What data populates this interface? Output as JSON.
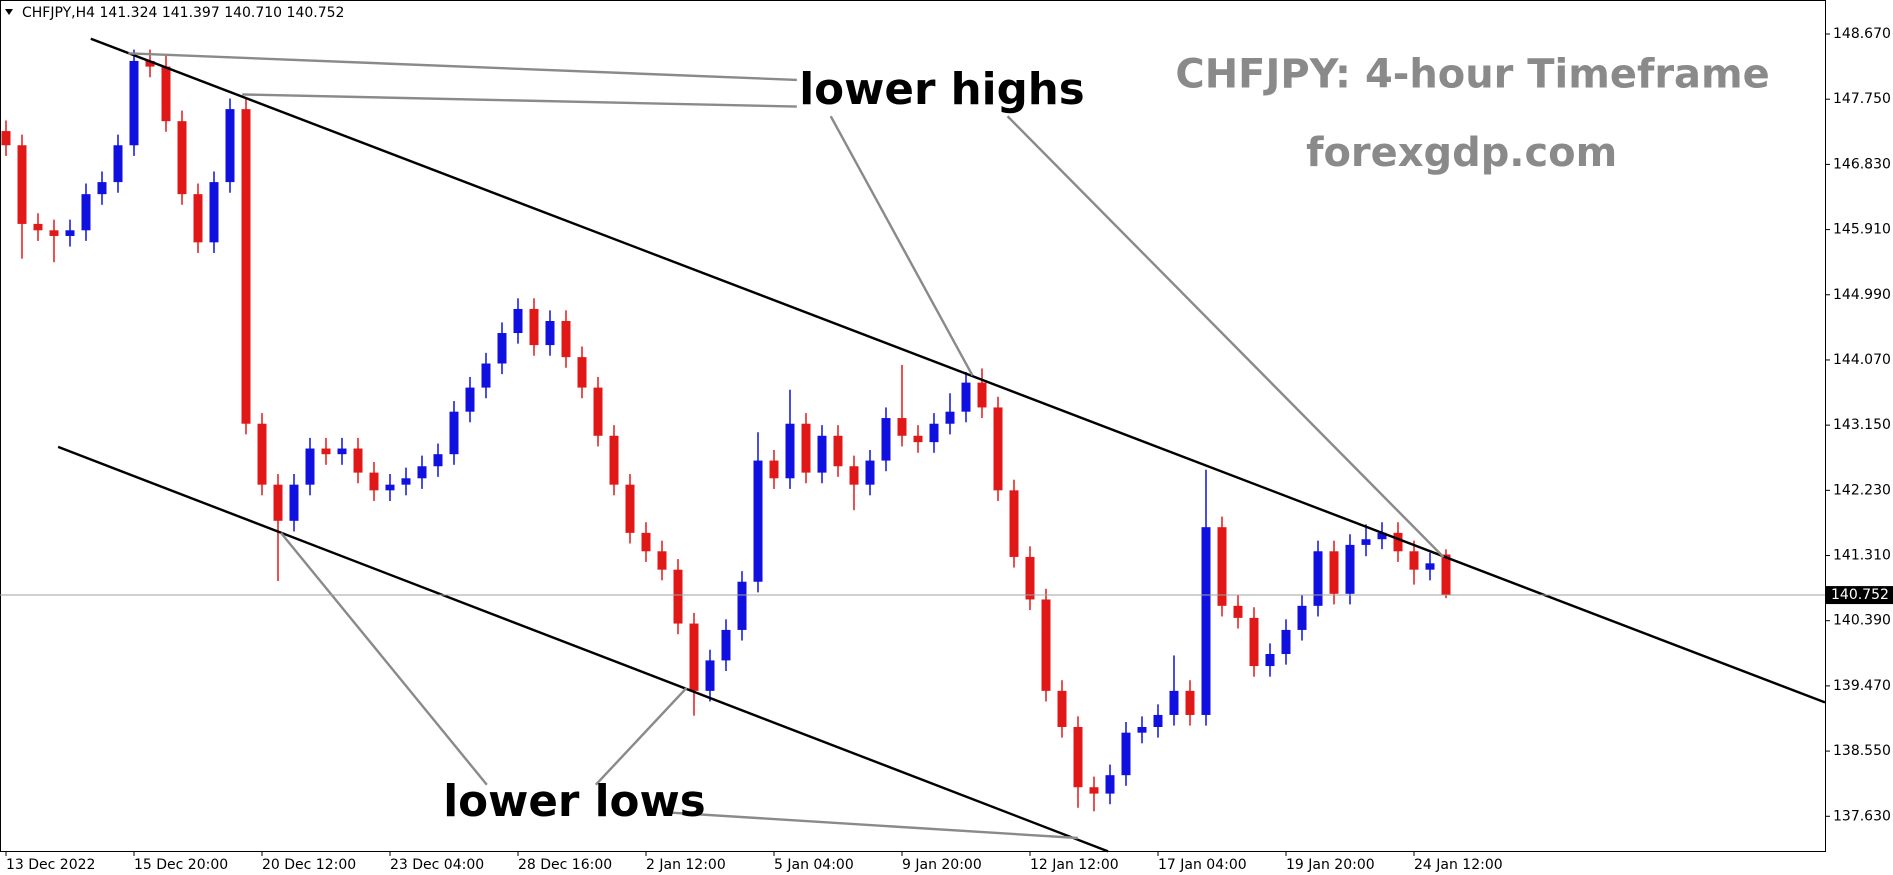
{
  "chart_data": {
    "type": "candlestick",
    "header": "CHFJPY,H4  141.324 141.397 140.710 140.752",
    "title": "CHFJPY: 4-hour Timeframe",
    "subtitle": "forexgdp.com",
    "annotations": [
      "lower highs",
      "lower lows"
    ],
    "up_color": "#1010e0",
    "down_color": "#e01818",
    "categories": [
      "13 Dec 2022",
      null,
      null,
      null,
      null,
      null,
      null,
      null,
      "15 Dec 20:00",
      null,
      null,
      null,
      null,
      null,
      null,
      null,
      "20 Dec 12:00",
      null,
      null,
      null,
      null,
      null,
      null,
      null,
      "23 Dec 04:00",
      null,
      null,
      null,
      null,
      null,
      null,
      null,
      "28 Dec 16:00",
      null,
      null,
      null,
      null,
      null,
      null,
      null,
      "2 Jan 12:00",
      null,
      null,
      null,
      null,
      null,
      null,
      null,
      "5 Jan 04:00",
      null,
      null,
      null,
      null,
      null,
      null,
      null,
      "9 Jan 20:00",
      null,
      null,
      null,
      null,
      null,
      null,
      null,
      "12 Jan 12:00",
      null,
      null,
      null,
      null,
      null,
      null,
      null,
      "17 Jan 04:00",
      null,
      null,
      null,
      null,
      null,
      null,
      null,
      "19 Jan 20:00",
      null,
      null,
      null,
      null,
      null,
      null,
      null,
      "24 Jan 12:00",
      null,
      null
    ],
    "open": [
      147.3,
      147.1,
      145.99,
      145.9,
      145.82,
      145.9,
      146.41,
      146.58,
      147.1,
      148.29,
      148.21,
      147.44,
      146.41,
      145.73,
      146.58,
      147.61,
      143.17,
      142.31,
      141.8,
      142.31,
      142.82,
      142.74,
      142.82,
      142.48,
      142.23,
      142.31,
      142.4,
      142.57,
      142.74,
      143.34,
      143.68,
      144.02,
      144.45,
      144.79,
      144.28,
      144.62,
      144.11,
      143.68,
      143.0,
      142.31,
      141.63,
      141.37,
      141.11,
      140.35,
      139.4,
      139.83,
      140.26,
      140.94,
      142.65,
      142.4,
      143.17,
      142.48,
      143.0,
      142.57,
      142.31,
      142.65,
      143.25,
      143.0,
      142.91,
      143.17,
      143.34,
      143.75,
      143.4,
      142.23,
      141.29,
      140.69,
      139.4,
      138.89,
      138.04,
      137.95,
      138.21,
      138.81,
      138.89,
      139.06,
      139.4,
      139.06,
      141.71,
      140.6,
      140.43,
      139.75,
      139.92,
      140.26,
      140.6,
      141.37,
      140.77,
      141.46,
      141.54,
      141.63,
      141.37,
      141.11,
      141.324
    ],
    "high": [
      147.45,
      147.25,
      146.14,
      146.05,
      146.05,
      146.56,
      146.73,
      147.25,
      148.45,
      148.45,
      148.36,
      147.59,
      146.56,
      146.73,
      147.76,
      147.76,
      143.32,
      142.46,
      142.46,
      142.97,
      142.97,
      142.97,
      142.97,
      142.63,
      142.46,
      142.55,
      142.72,
      142.89,
      143.49,
      143.83,
      144.17,
      144.6,
      144.94,
      144.94,
      144.77,
      144.77,
      144.26,
      143.83,
      143.15,
      142.46,
      141.78,
      141.52,
      141.26,
      140.5,
      139.98,
      140.41,
      141.09,
      143.05,
      142.8,
      143.65,
      143.32,
      143.15,
      143.15,
      142.72,
      142.8,
      143.4,
      144.0,
      143.15,
      143.32,
      143.6,
      143.9,
      143.95,
      143.55,
      142.38,
      141.44,
      140.84,
      139.55,
      139.04,
      138.19,
      138.36,
      138.96,
      139.04,
      139.21,
      139.9,
      139.55,
      142.52,
      141.86,
      140.75,
      140.58,
      140.07,
      140.41,
      140.75,
      141.52,
      141.52,
      141.61,
      141.75,
      141.78,
      141.78,
      141.52,
      141.35,
      141.397
    ],
    "low": [
      146.95,
      145.5,
      145.75,
      145.45,
      145.67,
      145.75,
      146.26,
      146.43,
      146.95,
      148.06,
      147.29,
      146.26,
      145.58,
      145.58,
      146.43,
      143.02,
      142.16,
      140.95,
      141.65,
      142.16,
      142.59,
      142.59,
      142.33,
      142.08,
      142.08,
      142.16,
      142.25,
      142.42,
      142.59,
      143.19,
      143.53,
      143.87,
      144.3,
      144.13,
      144.13,
      143.96,
      143.53,
      142.85,
      142.16,
      141.48,
      141.22,
      140.96,
      140.2,
      139.05,
      139.25,
      139.68,
      140.11,
      140.79,
      142.25,
      142.25,
      142.33,
      142.33,
      142.42,
      141.95,
      142.16,
      142.5,
      142.85,
      142.76,
      142.76,
      143.02,
      143.19,
      143.25,
      142.08,
      141.14,
      140.54,
      139.25,
      138.74,
      137.75,
      137.7,
      137.8,
      138.06,
      138.66,
      138.74,
      138.91,
      138.91,
      138.91,
      140.45,
      140.28,
      139.6,
      139.6,
      139.77,
      140.11,
      140.45,
      140.62,
      140.62,
      141.3,
      141.4,
      141.22,
      140.9,
      140.96,
      140.71
    ],
    "close": [
      147.1,
      145.99,
      145.9,
      145.82,
      145.9,
      146.41,
      146.58,
      147.1,
      148.29,
      148.21,
      147.44,
      146.41,
      145.73,
      146.58,
      147.61,
      143.17,
      142.31,
      141.8,
      142.31,
      142.82,
      142.74,
      142.82,
      142.48,
      142.23,
      142.31,
      142.4,
      142.57,
      142.74,
      143.34,
      143.68,
      144.02,
      144.45,
      144.79,
      144.28,
      144.62,
      144.11,
      143.68,
      143.0,
      142.31,
      141.63,
      141.37,
      141.11,
      140.35,
      139.4,
      139.83,
      140.26,
      140.94,
      142.65,
      142.4,
      143.17,
      142.48,
      143.0,
      142.57,
      142.31,
      142.65,
      143.25,
      143.0,
      142.91,
      143.17,
      143.34,
      143.75,
      143.4,
      142.23,
      141.29,
      140.69,
      139.4,
      138.89,
      138.04,
      137.95,
      138.21,
      138.81,
      138.89,
      139.06,
      139.4,
      139.06,
      141.71,
      140.6,
      140.43,
      139.75,
      139.92,
      140.26,
      140.6,
      141.37,
      140.77,
      141.46,
      141.54,
      141.63,
      141.37,
      141.11,
      141.2,
      140.752
    ],
    "ylim": [
      137.14,
      149.15
    ],
    "yticks": [
      {
        "value": 148.67,
        "label": "148.670"
      },
      {
        "value": 147.75,
        "label": "147.750"
      },
      {
        "value": 146.83,
        "label": "146.830"
      },
      {
        "value": 145.91,
        "label": "145.910"
      },
      {
        "value": 144.99,
        "label": "144.990"
      },
      {
        "value": 144.07,
        "label": "144.070"
      },
      {
        "value": 143.15,
        "label": "143.150"
      },
      {
        "value": 142.23,
        "label": "142.230"
      },
      {
        "value": 141.31,
        "label": "141.310"
      },
      {
        "value": 140.39,
        "label": "140.390"
      },
      {
        "value": 139.47,
        "label": "139.470"
      },
      {
        "value": 138.55,
        "label": "138.550"
      },
      {
        "value": 137.63,
        "label": "137.630"
      }
    ],
    "price_line": {
      "value": 140.752,
      "label": "140.752"
    }
  }
}
